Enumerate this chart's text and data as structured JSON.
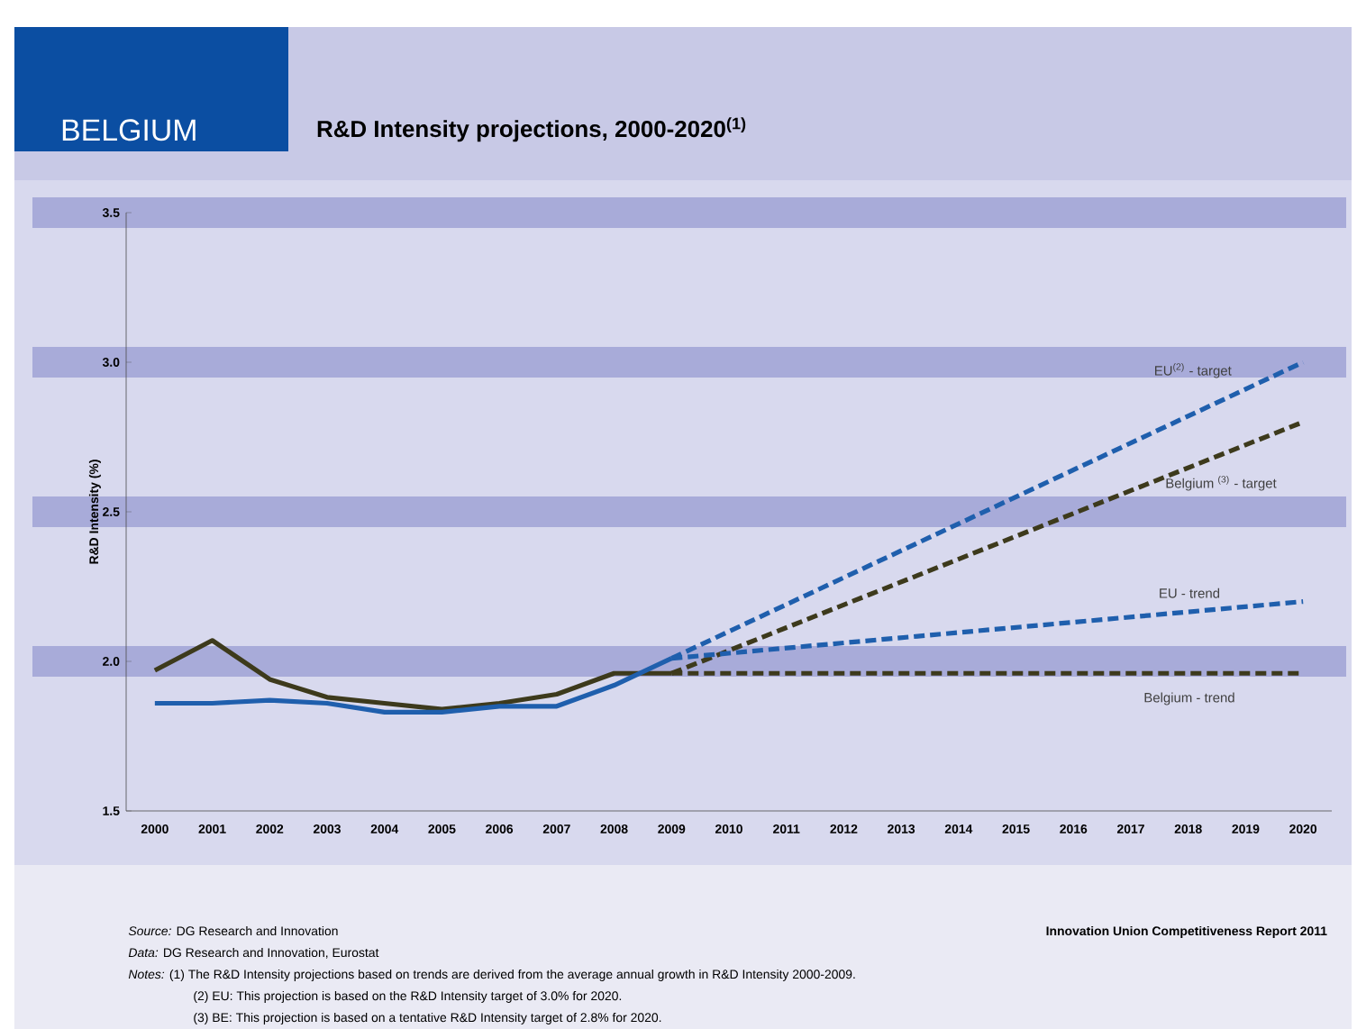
{
  "chart_data": {
    "type": "line",
    "title": "BELGIUM",
    "subtitle": "R&D Intensity projections, 2000-2020$^{(1)}$",
    "ylabel": "R&D Intensity (%)",
    "xlim": [
      1999.5,
      2020.5
    ],
    "xticks": [
      2000,
      2001,
      2002,
      2003,
      2004,
      2005,
      2006,
      2007,
      2008,
      2009,
      2010,
      2011,
      2012,
      2013,
      2014,
      2015,
      2016,
      2017,
      2018,
      2019,
      2020
    ],
    "ylim": [
      1.5,
      3.5
    ],
    "yticks": [
      1.5,
      {
        "value": 2,
        "label": "2.0"
      },
      2.5,
      {
        "value": 3,
        "label": "3.0"
      },
      3.5
    ],
    "grid": "y",
    "legend": false,
    "marker": "none",
    "series": [
      {
        "color": "#3d3a1c",
        "line_style": "solid",
        "x": [
          2000,
          2001,
          2002,
          2003,
          2004,
          2005,
          2006,
          2007,
          2008,
          2009
        ],
        "values": [
          1.97,
          2.07,
          1.94,
          1.88,
          1.86,
          1.84,
          1.86,
          1.89,
          1.96,
          1.96
        ]
      },
      {
        "color": "#1f5fad",
        "line_style": "solid",
        "x": [
          2000,
          2001,
          2002,
          2003,
          2004,
          2005,
          2006,
          2007,
          2008,
          2009
        ],
        "values": [
          1.86,
          1.86,
          1.87,
          1.86,
          1.83,
          1.83,
          1.85,
          1.85,
          1.92,
          2.01
        ]
      },
      {
        "name": "EU$^{(2)}$ - target",
        "color": "#1f5fad",
        "line_style": "dashed",
        "x": [
          2009,
          2020
        ],
        "values": [
          2.01,
          3.0
        ]
      },
      {
        "name": "Belgium $^{(3)}$ - target",
        "color": "#3d3a1c",
        "line_style": "dashed",
        "x": [
          2009,
          2020
        ],
        "values": [
          1.96,
          2.8
        ]
      },
      {
        "name": "EU - trend",
        "color": "#1f5fad",
        "line_style": "dashed",
        "x": [
          2009,
          2020
        ],
        "values": [
          2.01,
          2.2
        ]
      },
      {
        "name": "Belgium - trend",
        "color": "#3d3a1c",
        "line_style": "dashed",
        "x": [
          2009,
          2020
        ],
        "values": [
          1.96,
          1.96
        ]
      }
    ],
    "annotations": [
      "*Source:* DG Research and Innovation",
      "*Data:* DG Research and Innovation, Eurostat",
      "*Notes:* (1) The R&D Intensity projections based on trends are derived from the average annual growth in R&D Intensity 2000-2009.",
      "(2) EU: This projection is based on the R&D Intensity target of 3.0% for 2020.",
      "(3) BE: This projection is based on a tentative R&D Intensity target of 2.8% for 2020.",
      "Innovation Union Competitiveness Report 2011"
    ]
  }
}
